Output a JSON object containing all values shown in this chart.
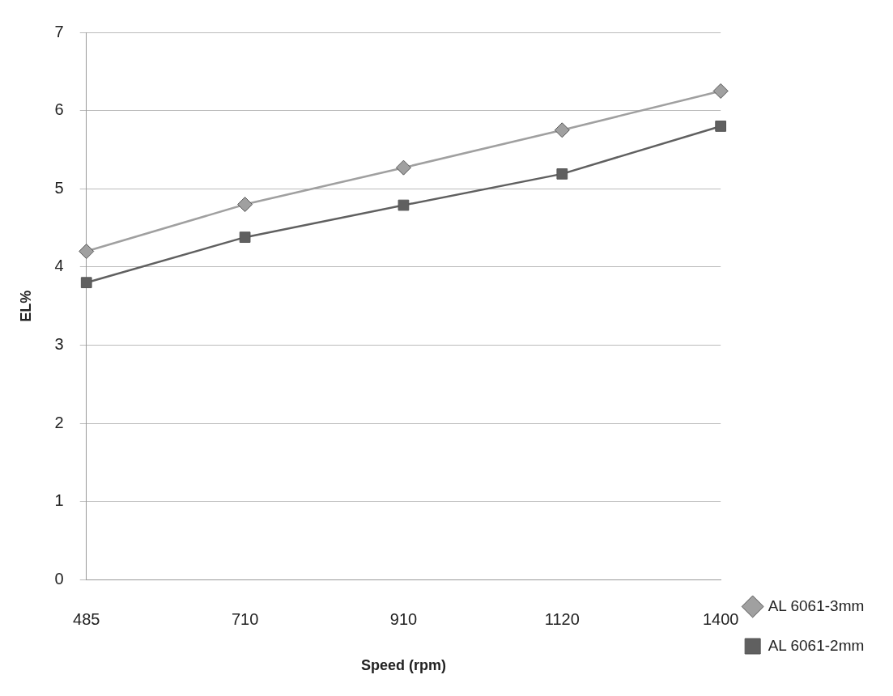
{
  "chart_data": {
    "type": "line",
    "xlabel": "Speed (rpm)",
    "ylabel": "EL%",
    "categories": [
      "485",
      "710",
      "910",
      "1120",
      "1400"
    ],
    "series": [
      {
        "name": "AL 6061-3mm",
        "color": "#a0a0a0",
        "marker": "diamond",
        "values": [
          4.2,
          4.8,
          5.27,
          5.75,
          6.25
        ]
      },
      {
        "name": "AL 6061-2mm",
        "color": "#606060",
        "marker": "square",
        "values": [
          3.8,
          4.38,
          4.79,
          5.19,
          5.8
        ]
      }
    ],
    "ylim": [
      0,
      7
    ],
    "yticks": [
      0,
      1,
      2,
      3,
      4,
      5,
      6,
      7
    ],
    "grid": "y",
    "legend": "bottom right",
    "line_style": "solid"
  }
}
